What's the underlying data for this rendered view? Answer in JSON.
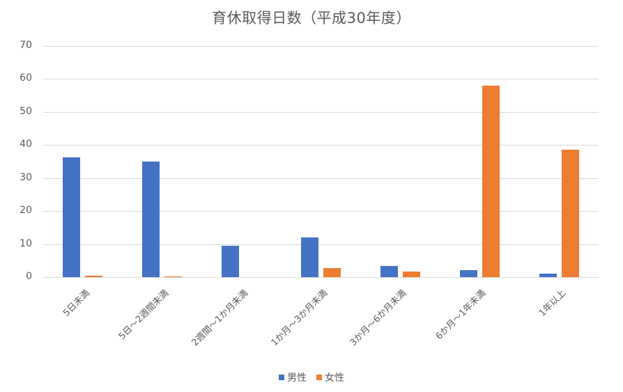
{
  "title": "育休取得日数（平成30年度）",
  "legend": [
    {
      "label": "男性",
      "color": "#4472C4"
    },
    {
      "label": "女性",
      "color": "#ED7D31"
    }
  ],
  "chart_data": {
    "type": "bar",
    "title": "育休取得日数（平成30年度）",
    "xlabel": "",
    "ylabel": "",
    "ylim": [
      0,
      70
    ],
    "yticks": [
      0,
      10,
      20,
      30,
      40,
      50,
      60,
      70
    ],
    "grid": true,
    "legend_position": "bottom",
    "categories": [
      "5日未満",
      "5日～2週間未満",
      "2週間～1か月未満",
      "1か月～3か月未満",
      "3か月～6か月未満",
      "6か月～1年未満",
      "1年以上"
    ],
    "series": [
      {
        "name": "男性",
        "color": "#4472C4",
        "values": [
          36.3,
          35.1,
          9.5,
          12.0,
          3.4,
          2.2,
          1.0
        ]
      },
      {
        "name": "女性",
        "color": "#ED7D31",
        "values": [
          0.5,
          0.3,
          0.0,
          2.8,
          1.7,
          58.0,
          38.5
        ]
      }
    ]
  }
}
